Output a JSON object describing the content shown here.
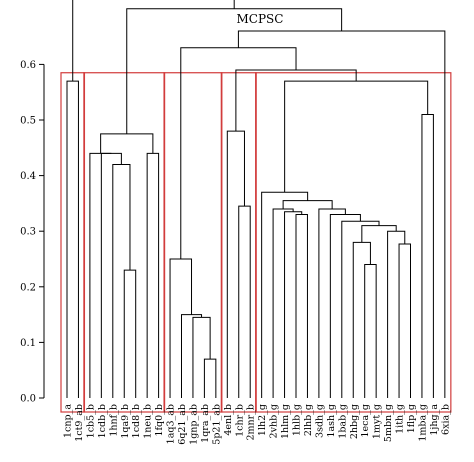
{
  "chart_data": {
    "type": "dendrogram",
    "title": "MCPSC",
    "ylim": [
      0,
      0.6
    ],
    "yticks": [
      "0.0",
      "0.1",
      "0.2",
      "0.3",
      "0.4",
      "0.5",
      "0.6"
    ],
    "colors": {
      "branch": "#000000",
      "cluster_box": "#d23c3c"
    },
    "leaves": [
      "1cnp_a",
      "1ct9_ab",
      "1cb5_b",
      "1cdb_b",
      "1hnf_b",
      "1qa9_b",
      "1cd8_b",
      "1neu_b",
      "1fq0_b",
      "1aq3_ab",
      "6q21_ab",
      "1gnp_ab",
      "1qra_ab",
      "5p21_ab",
      "4enl_b",
      "1chr_b",
      "2mnr_b",
      "1lh2_g",
      "2vhb_g",
      "1hlm_g",
      "1hlb_g",
      "2lhb_g",
      "3sdh_g",
      "1ash_g",
      "1bab_g",
      "2hbg_g",
      "1eca_g",
      "1myt_g",
      "5mbn_g",
      "1ith_g",
      "1flp_g",
      "1mba_g",
      "1jhg_a",
      "6xia_b"
    ],
    "merges": [
      {
        "id": "m1",
        "left": "L0",
        "right": "L1",
        "height": 0.57
      },
      {
        "id": "m2",
        "left": "L5",
        "right": "L6",
        "height": 0.23
      },
      {
        "id": "m3",
        "left": "L4",
        "right": "m2",
        "height": 0.42
      },
      {
        "id": "m4",
        "left": "L3",
        "right": "m3",
        "height": 0.44
      },
      {
        "id": "m5",
        "left": "L7",
        "right": "L8",
        "height": 0.44
      },
      {
        "id": "m6",
        "left": "L2",
        "right": "m4",
        "height": 0.44
      },
      {
        "id": "m7",
        "left": "m6",
        "right": "m5",
        "height": 0.475
      },
      {
        "id": "m8",
        "left": "L12",
        "right": "L13",
        "height": 0.07
      },
      {
        "id": "m9",
        "left": "L11",
        "right": "m8",
        "height": 0.145
      },
      {
        "id": "m10",
        "left": "L10",
        "right": "m9",
        "height": 0.15
      },
      {
        "id": "m11",
        "left": "L9",
        "right": "m10",
        "height": 0.25
      },
      {
        "id": "m12",
        "left": "L15",
        "right": "L16",
        "height": 0.345
      },
      {
        "id": "m13",
        "left": "L14",
        "right": "m12",
        "height": 0.48
      },
      {
        "id": "m14",
        "left": "L20",
        "right": "L21",
        "height": 0.33
      },
      {
        "id": "m15",
        "left": "L19",
        "right": "m14",
        "height": 0.335
      },
      {
        "id": "m16",
        "left": "L18",
        "right": "m15",
        "height": 0.34
      },
      {
        "id": "m17",
        "left": "L26",
        "right": "L27",
        "height": 0.24
      },
      {
        "id": "m18",
        "left": "L25",
        "right": "m17",
        "height": 0.28
      },
      {
        "id": "m19",
        "left": "L29",
        "right": "L30",
        "height": 0.277
      },
      {
        "id": "m20",
        "left": "L28",
        "right": "m19",
        "height": 0.3
      },
      {
        "id": "m21",
        "left": "m18",
        "right": "m20",
        "height": 0.31
      },
      {
        "id": "m22",
        "left": "L24",
        "right": "m21",
        "height": 0.318
      },
      {
        "id": "m23",
        "left": "L23",
        "right": "m22",
        "height": 0.33
      },
      {
        "id": "m24",
        "left": "L22",
        "right": "m23",
        "height": 0.34
      },
      {
        "id": "m25",
        "left": "m16",
        "right": "m24",
        "height": 0.355
      },
      {
        "id": "m26",
        "left": "L17",
        "right": "m25",
        "height": 0.37
      },
      {
        "id": "m27",
        "left": "L31",
        "right": "L32",
        "height": 0.51
      },
      {
        "id": "m28",
        "left": "m26",
        "right": "m27",
        "height": 0.57
      },
      {
        "id": "m29",
        "left": "m13",
        "right": "m28",
        "height": 0.59
      },
      {
        "id": "m30",
        "left": "m11",
        "right": "m29",
        "height": 0.63
      },
      {
        "id": "m31",
        "left": "m30",
        "right": "L33",
        "height": 0.66
      },
      {
        "id": "m32",
        "left": "m7",
        "right": "m31",
        "height": 0.7
      },
      {
        "id": "m33",
        "left": "m1",
        "right": "m32",
        "height": 0.72
      }
    ],
    "clusters": [
      {
        "first": 0,
        "last": 1
      },
      {
        "first": 2,
        "last": 8
      },
      {
        "first": 9,
        "last": 13
      },
      {
        "first": 14,
        "last": 16
      },
      {
        "first": 17,
        "last": 33
      }
    ]
  }
}
